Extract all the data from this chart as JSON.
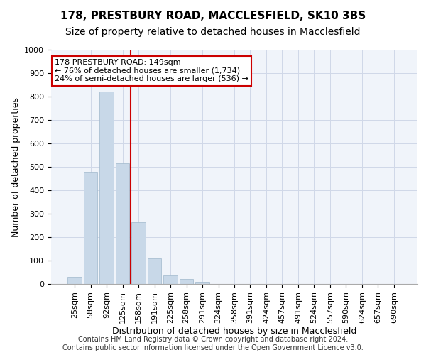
{
  "title1": "178, PRESTBURY ROAD, MACCLESFIELD, SK10 3BS",
  "title2": "Size of property relative to detached houses in Macclesfield",
  "xlabel": "Distribution of detached houses by size in Macclesfield",
  "ylabel": "Number of detached properties",
  "categories": [
    "25sqm",
    "58sqm",
    "92sqm",
    "125sqm",
    "158sqm",
    "191sqm",
    "225sqm",
    "258sqm",
    "291sqm",
    "324sqm",
    "358sqm",
    "391sqm",
    "424sqm",
    "457sqm",
    "491sqm",
    "524sqm",
    "557sqm",
    "590sqm",
    "624sqm",
    "657sqm",
    "690sqm"
  ],
  "values": [
    30,
    478,
    820,
    515,
    265,
    110,
    35,
    20,
    10,
    0,
    0,
    0,
    0,
    0,
    0,
    0,
    0,
    0,
    0,
    0,
    0
  ],
  "bar_color": "#c8d8e8",
  "bar_edge_color": "#a0b8cc",
  "property_line_color": "#cc0000",
  "annotation_text": "178 PRESTBURY ROAD: 149sqm\n← 76% of detached houses are smaller (1,734)\n24% of semi-detached houses are larger (536) →",
  "annotation_box_color": "#cc0000",
  "ylim": [
    0,
    1000
  ],
  "yticks": [
    0,
    100,
    200,
    300,
    400,
    500,
    600,
    700,
    800,
    900,
    1000
  ],
  "grid_color": "#d0d8e8",
  "background_color": "#f0f4fa",
  "footer_text": "Contains HM Land Registry data © Crown copyright and database right 2024.\nContains public sector information licensed under the Open Government Licence v3.0.",
  "title1_fontsize": 11,
  "title2_fontsize": 10,
  "xlabel_fontsize": 9,
  "ylabel_fontsize": 9,
  "tick_fontsize": 8,
  "annotation_fontsize": 8,
  "footer_fontsize": 7
}
